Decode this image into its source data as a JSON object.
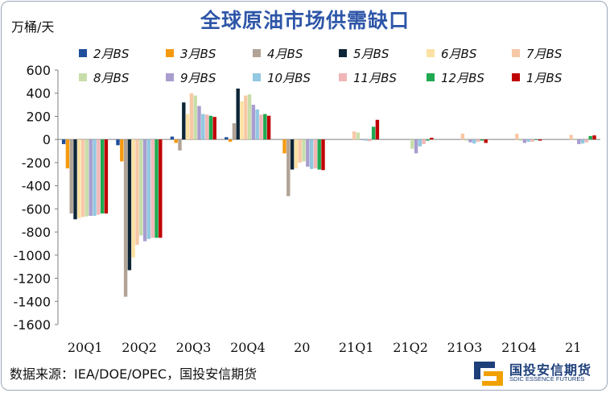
{
  "header": {
    "title": "全球原油市场供需缺口",
    "unit": "万桶/天"
  },
  "footer": {
    "source": "数据来源：IEA/DOE/OPEC，国投安信期货",
    "logo_cn": "国投安信期货",
    "logo_en": "SDIC ESSENCE FUTURES"
  },
  "chart_data": {
    "type": "bar",
    "title": "全球原油市场供需缺口",
    "ylabel": "万桶/天",
    "ylim": [
      -1600,
      600
    ],
    "yticks": [
      600,
      400,
      200,
      0,
      -200,
      -400,
      -600,
      -800,
      -1000,
      -1200,
      -1400,
      -1600
    ],
    "grid": false,
    "legend_position": "top",
    "categories": [
      "20Q1",
      "20Q2",
      "20Q3",
      "20Q4",
      "20",
      "21Q1",
      "21Q2",
      "21O3",
      "21O4",
      "21"
    ],
    "series": [
      {
        "name": "2月BS",
        "color": "#1f4e9c",
        "values": [
          -40,
          -50,
          25,
          20,
          null,
          null,
          null,
          null,
          null,
          null
        ]
      },
      {
        "name": "3月BS",
        "color": "#f59a0e",
        "values": [
          -250,
          -190,
          -30,
          -20,
          -120,
          null,
          null,
          null,
          null,
          null
        ]
      },
      {
        "name": "4月BS",
        "color": "#b1a396",
        "values": [
          -640,
          -1360,
          -95,
          140,
          -490,
          null,
          null,
          null,
          null,
          null
        ]
      },
      {
        "name": "5月BS",
        "color": "#0d2537",
        "values": [
          -690,
          -1130,
          320,
          440,
          -260,
          null,
          null,
          null,
          null,
          null
        ]
      },
      {
        "name": "6月BS",
        "color": "#fbe2a4",
        "values": [
          -680,
          -1020,
          220,
          330,
          -250,
          null,
          null,
          null,
          null,
          null
        ]
      },
      {
        "name": "7月BS",
        "color": "#f7c8a6",
        "values": [
          -670,
          -910,
          400,
          380,
          -200,
          70,
          null,
          50,
          50,
          40
        ]
      },
      {
        "name": "8月BS",
        "color": "#c8deaa",
        "values": [
          -665,
          -830,
          380,
          390,
          -190,
          60,
          -80,
          -10,
          -10,
          0
        ]
      },
      {
        "name": "9月BS",
        "color": "#a99dd0",
        "values": [
          -660,
          -880,
          290,
          300,
          -235,
          -5,
          -120,
          -25,
          -30,
          -40
        ]
      },
      {
        "name": "10月BS",
        "color": "#92c8e0",
        "values": [
          -660,
          -860,
          220,
          260,
          -255,
          -10,
          -60,
          -35,
          -20,
          -35
        ]
      },
      {
        "name": "11月BS",
        "color": "#f1b7b7",
        "values": [
          -650,
          -850,
          215,
          215,
          -250,
          -15,
          -40,
          -20,
          -20,
          -25
        ]
      },
      {
        "name": "12月BS",
        "color": "#1fa951",
        "values": [
          -640,
          -850,
          205,
          220,
          -260,
          110,
          -10,
          -10,
          -5,
          30
        ]
      },
      {
        "name": "1月BS",
        "color": "#c00000",
        "values": [
          -640,
          -850,
          195,
          205,
          -265,
          170,
          15,
          -30,
          -10,
          35
        ]
      }
    ]
  }
}
